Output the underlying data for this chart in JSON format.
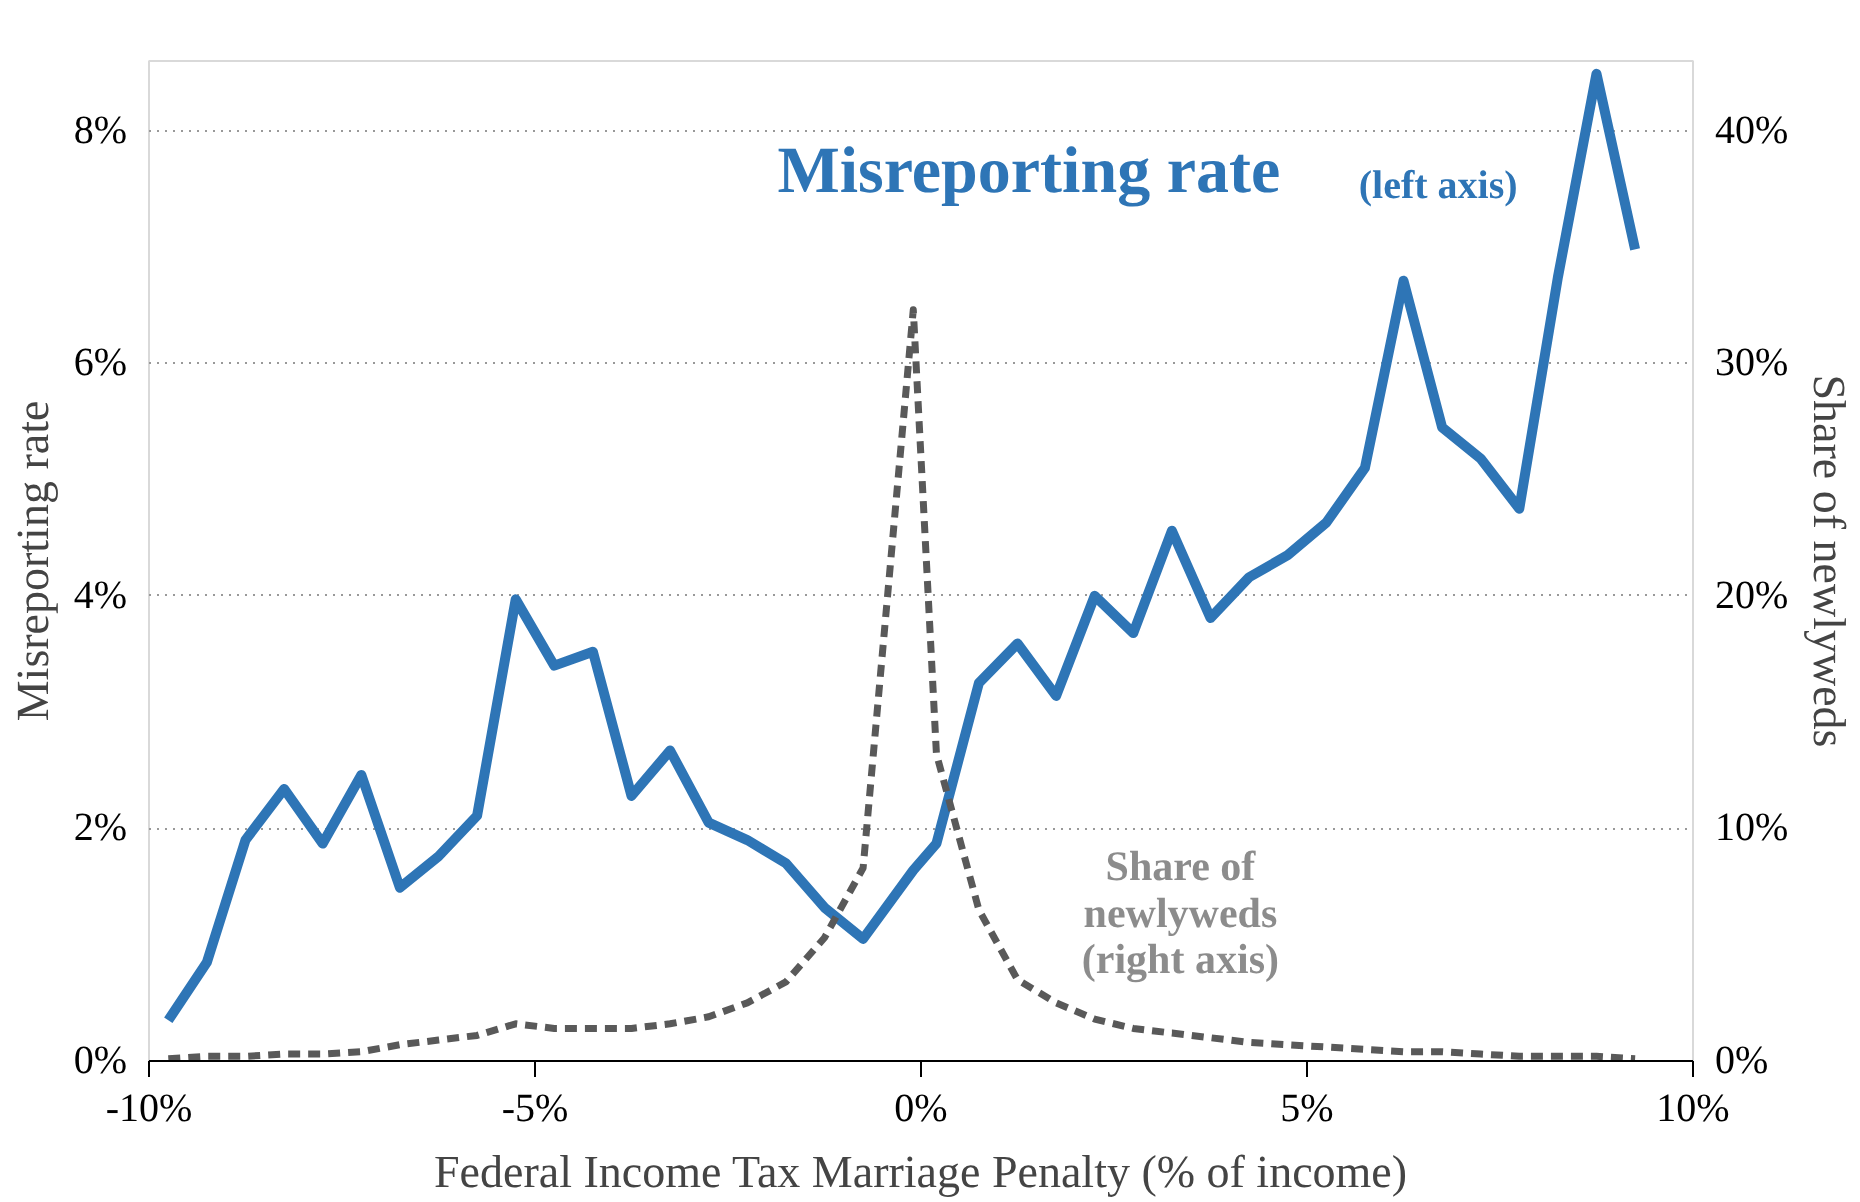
{
  "chart_data": {
    "type": "line",
    "xlabel": "Federal Income Tax Marriage Penalty (% of income)",
    "ylabel": "Misreporting rate",
    "y2label": "Share of newlyweds",
    "xlim": [
      -10,
      10
    ],
    "xticks": [
      {
        "value": -10,
        "label": "-10%"
      },
      {
        "value": -5,
        "label": "-5%"
      },
      {
        "value": 0,
        "label": "0%"
      },
      {
        "value": 5,
        "label": "5%"
      },
      {
        "value": 10,
        "label": "10%"
      }
    ],
    "ylim": [
      0,
      8.6
    ],
    "yticks": [
      {
        "value": 0,
        "label": "0%"
      },
      {
        "value": 2,
        "label": "2%"
      },
      {
        "value": 4,
        "label": "4%"
      },
      {
        "value": 6,
        "label": "6%"
      },
      {
        "value": 8,
        "label": "8%"
      }
    ],
    "y2lim": [
      0,
      43
    ],
    "y2ticks": [
      {
        "value": 0,
        "label": "0%"
      },
      {
        "value": 10,
        "label": "10%"
      },
      {
        "value": 20,
        "label": "20%"
      },
      {
        "value": 30,
        "label": "30%"
      },
      {
        "value": 40,
        "label": "40%"
      }
    ],
    "grid": "y",
    "marker": "none",
    "annotations": [
      "(left axis)",
      "(right axis)"
    ],
    "series": [
      {
        "name": "Misreporting rate",
        "color": "#2e75b6",
        "line_style": "solid",
        "x": [
          -9.75,
          -9.25,
          -8.75,
          -8.25,
          -7.75,
          -7.25,
          -6.75,
          -6.25,
          -5.75,
          -5.25,
          -4.75,
          -4.25,
          -3.75,
          -3.25,
          -2.75,
          -2.25,
          -1.75,
          -1.25,
          -0.75,
          -0.1,
          0.2,
          0.75,
          1.25,
          1.75,
          2.25,
          2.75,
          3.25,
          3.75,
          4.25,
          4.75,
          5.25,
          5.75,
          6.25,
          6.75,
          7.25,
          7.75,
          8.25,
          8.75,
          9.25
        ],
        "values": [
          0.35,
          0.85,
          1.9,
          2.34,
          1.87,
          2.46,
          1.49,
          1.76,
          2.11,
          3.97,
          3.4,
          3.52,
          2.28,
          2.67,
          2.05,
          1.9,
          1.7,
          1.32,
          1.05,
          1.64,
          1.87,
          3.25,
          3.59,
          3.14,
          4.0,
          3.68,
          4.56,
          3.81,
          4.16,
          4.35,
          4.63,
          5.1,
          6.71,
          5.45,
          5.18,
          4.75,
          6.74,
          8.49,
          6.98
        ]
      },
      {
        "name": "Share of newlyweds",
        "color": "#595959",
        "axis": "y2",
        "line_style": "dashed",
        "x": [
          -9.75,
          -9.25,
          -8.75,
          -8.25,
          -7.75,
          -7.25,
          -6.75,
          -6.25,
          -5.75,
          -5.25,
          -4.75,
          -4.25,
          -3.75,
          -3.25,
          -2.75,
          -2.25,
          -1.75,
          -1.25,
          -0.75,
          -0.1,
          0.2,
          0.75,
          1.25,
          1.75,
          2.25,
          2.75,
          3.25,
          3.75,
          4.25,
          4.75,
          5.25,
          5.75,
          6.25,
          6.75,
          7.25,
          7.75,
          8.25,
          8.75,
          9.25
        ],
        "values": [
          0.1,
          0.2,
          0.2,
          0.3,
          0.3,
          0.4,
          0.7,
          0.9,
          1.1,
          1.6,
          1.4,
          1.4,
          1.4,
          1.6,
          1.9,
          2.5,
          3.4,
          5.3,
          8.3,
          32.3,
          13.2,
          6.5,
          3.5,
          2.5,
          1.8,
          1.4,
          1.2,
          1.0,
          0.8,
          0.7,
          0.6,
          0.5,
          0.4,
          0.4,
          0.3,
          0.2,
          0.2,
          0.2,
          0.1
        ]
      }
    ]
  }
}
